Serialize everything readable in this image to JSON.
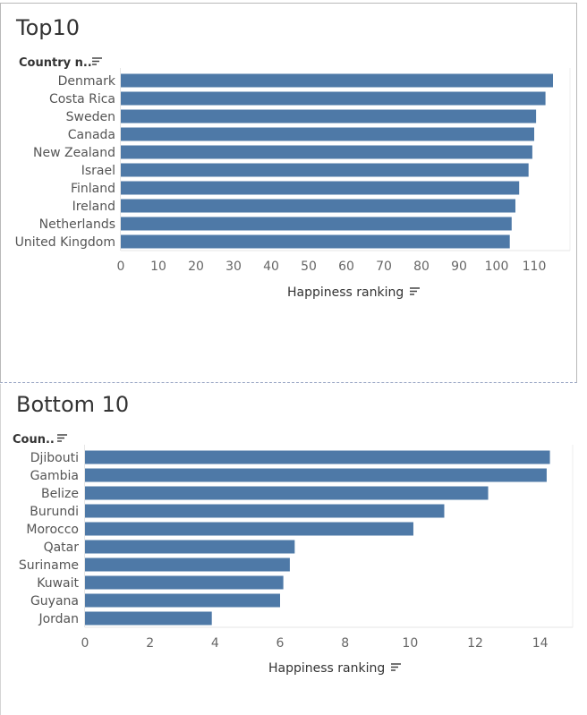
{
  "colors": {
    "bar": "#4e79a7"
  },
  "icons": {
    "sort": "sort-descending-icon"
  },
  "chart_data": [
    {
      "type": "bar",
      "orientation": "horizontal",
      "title": "Top10",
      "ylabel": "Country n..",
      "xlabel": "Happiness ranking",
      "categories": [
        "Denmark",
        "Costa Rica",
        "Sweden",
        "Canada",
        "New Zealand",
        "Israel",
        "Finland",
        "Ireland",
        "Netherlands",
        "United Kingdom"
      ],
      "values": [
        115,
        113,
        110.5,
        110,
        109.5,
        108.5,
        106,
        105,
        104,
        103.5
      ],
      "xticks": [
        0,
        10,
        20,
        30,
        40,
        50,
        60,
        70,
        80,
        90,
        100,
        110
      ],
      "xlim": [
        0,
        120
      ],
      "grid": false,
      "legend": "none"
    },
    {
      "type": "bar",
      "orientation": "horizontal",
      "title": "Bottom 10",
      "ylabel": "Coun..",
      "xlabel": "Happiness ranking",
      "categories": [
        "Djibouti",
        "Gambia",
        "Belize",
        "Burundi",
        "Morocco",
        "Qatar",
        "Suriname",
        "Kuwait",
        "Guyana",
        "Jordan"
      ],
      "values": [
        14.3,
        14.2,
        12.4,
        11.05,
        10.1,
        6.45,
        6.3,
        6.1,
        6.0,
        3.9
      ],
      "xticks": [
        0,
        2,
        4,
        6,
        8,
        10,
        12,
        14
      ],
      "xlim": [
        0,
        15
      ],
      "grid": false,
      "legend": "none"
    }
  ]
}
